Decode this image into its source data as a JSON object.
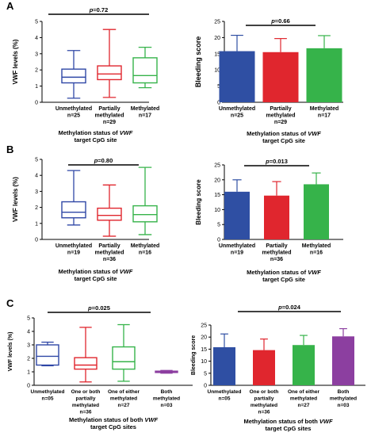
{
  "figure": {
    "panels": [
      {
        "letter": "A"
      },
      {
        "letter": "B"
      },
      {
        "letter": "C"
      }
    ]
  },
  "chart_data": [
    {
      "id": "A-left",
      "type": "box",
      "panel": "A",
      "p_label": "p",
      "p_value": "=0.72",
      "ylabel": "VWF levels (%)",
      "ylim": [
        0,
        5
      ],
      "yticks": [
        0,
        1,
        2,
        3,
        4,
        5
      ],
      "xtitle_lines": [
        [
          "Methylation status of ",
          "VWF"
        ],
        [
          "target CpG site",
          ""
        ]
      ],
      "categories": [
        {
          "lines": [
            "Unmethylated",
            "n=25"
          ],
          "color": "#2f47a6",
          "stats": {
            "min": 0.25,
            "q1": 1.2,
            "median": 1.55,
            "q3": 2.05,
            "max": 3.2
          }
        },
        {
          "lines": [
            "Partially",
            "methylated",
            "n=29"
          ],
          "color": "#e0262e",
          "stats": {
            "min": 0.3,
            "q1": 1.4,
            "median": 1.75,
            "q3": 2.25,
            "max": 4.5
          }
        },
        {
          "lines": [
            "Methylated",
            "n=17"
          ],
          "color": "#36b34a",
          "stats": {
            "min": 0.9,
            "q1": 1.2,
            "median": 1.65,
            "q3": 2.75,
            "max": 3.4
          }
        }
      ]
    },
    {
      "id": "A-right",
      "type": "bar",
      "panel": "A",
      "p_label": "p",
      "p_value": "=0.66",
      "ylabel": "Bleeding score",
      "ylim": [
        0,
        25
      ],
      "yticks": [
        0,
        5,
        10,
        15,
        20,
        25
      ],
      "xtitle_lines": [
        [
          "Methylation status of ",
          "VWF"
        ],
        [
          "target CpG site",
          ""
        ]
      ],
      "categories": [
        {
          "lines": [
            "Unmethylated",
            "n=25"
          ],
          "color": "#2f4fa3",
          "value": 15.8,
          "err": 4.9
        },
        {
          "lines": [
            "Partially",
            "methylated",
            "n=29"
          ],
          "color": "#e0262e",
          "value": 15.5,
          "err": 4.2
        },
        {
          "lines": [
            "Methylated",
            "n=17"
          ],
          "color": "#36b34a",
          "value": 16.7,
          "err": 3.9
        }
      ]
    },
    {
      "id": "B-left",
      "type": "box",
      "panel": "B",
      "p_label": "p",
      "p_value": "=0.80",
      "ylabel": "VWF levels (%)",
      "ylim": [
        0,
        5
      ],
      "yticks": [
        0,
        1,
        2,
        3,
        4,
        5
      ],
      "xtitle_lines": [
        [
          "Methylation status of ",
          "VWF"
        ],
        [
          "target CpG site",
          ""
        ]
      ],
      "categories": [
        {
          "lines": [
            "Unmethylated",
            "n=19"
          ],
          "color": "#2f47a6",
          "stats": {
            "min": 0.9,
            "q1": 1.35,
            "median": 1.7,
            "q3": 2.35,
            "max": 4.3
          }
        },
        {
          "lines": [
            "Partially",
            "methylated",
            "n=36"
          ],
          "color": "#e0262e",
          "stats": {
            "min": 0.2,
            "q1": 1.2,
            "median": 1.5,
            "q3": 1.95,
            "max": 3.4
          }
        },
        {
          "lines": [
            "Methylated",
            "n=16"
          ],
          "color": "#36b34a",
          "stats": {
            "min": 0.3,
            "q1": 1.1,
            "median": 1.55,
            "q3": 2.1,
            "max": 4.5
          }
        }
      ]
    },
    {
      "id": "B-right",
      "type": "bar",
      "panel": "B",
      "p_label": "p",
      "p_value": "=0.013",
      "ylabel": "Bleeding score",
      "ylim": [
        0,
        25
      ],
      "yticks": [
        0,
        5,
        10,
        15,
        20,
        25
      ],
      "xtitle_lines": [
        [
          "Methylation status of ",
          "VWF"
        ],
        [
          "target CpG site",
          ""
        ]
      ],
      "categories": [
        {
          "lines": [
            "Unmethylated",
            "n=19"
          ],
          "color": "#2f4fa3",
          "value": 16.0,
          "err": 4.0
        },
        {
          "lines": [
            "Partially",
            "methylated",
            "n=36"
          ],
          "color": "#e0262e",
          "value": 14.7,
          "err": 4.7
        },
        {
          "lines": [
            "Methylated",
            "n=16"
          ],
          "color": "#36b34a",
          "value": 18.5,
          "err": 3.8
        }
      ]
    },
    {
      "id": "C-left",
      "type": "box",
      "panel": "C",
      "p_label": "p",
      "p_value": "=0.025",
      "ylabel": "VWF levels (%)",
      "ylim": [
        0,
        5
      ],
      "yticks": [
        0,
        1,
        2,
        3,
        4,
        5
      ],
      "xtitle_lines": [
        [
          "Methylation status of both ",
          "VWF"
        ],
        [
          "target CpG sites",
          ""
        ]
      ],
      "categories": [
        {
          "lines": [
            "Unmethylated",
            "n=05"
          ],
          "color": "#2f47a6",
          "stats": {
            "min": 1.45,
            "q1": 1.5,
            "median": 2.15,
            "q3": 3.0,
            "max": 3.2
          }
        },
        {
          "lines": [
            "One or both",
            "partially",
            "methylated",
            "n=36"
          ],
          "color": "#e0262e",
          "stats": {
            "min": 0.25,
            "q1": 1.2,
            "median": 1.5,
            "q3": 2.05,
            "max": 4.3
          }
        },
        {
          "lines": [
            "One of either",
            "methylated",
            "n=27"
          ],
          "color": "#36b34a",
          "stats": {
            "min": 0.3,
            "q1": 1.2,
            "median": 1.75,
            "q3": 2.85,
            "max": 4.5
          }
        },
        {
          "lines": [
            "Both",
            "methylated",
            "n=03"
          ],
          "color": "#8c3fa0",
          "stats": {
            "min": 0.9,
            "q1": 0.95,
            "median": 1.0,
            "q3": 1.05,
            "max": 1.1
          }
        }
      ]
    },
    {
      "id": "C-right",
      "type": "bar",
      "panel": "C",
      "p_label": "p",
      "p_value": "=0.024",
      "ylabel": "Bleeding score",
      "ylim": [
        0,
        25
      ],
      "yticks": [
        0,
        5,
        10,
        15,
        20,
        25
      ],
      "xtitle_lines": [
        [
          "Methylation status of both ",
          "VWF"
        ],
        [
          "target CpG sites",
          ""
        ]
      ],
      "categories": [
        {
          "lines": [
            "Unmethylated",
            "n=05"
          ],
          "color": "#2f4fa3",
          "value": 15.8,
          "err": 5.5
        },
        {
          "lines": [
            "One or both",
            "partially",
            "methylated",
            "n=36"
          ],
          "color": "#e0262e",
          "value": 14.6,
          "err": 4.6
        },
        {
          "lines": [
            "One of either",
            "methylated",
            "n=27"
          ],
          "color": "#36b34a",
          "value": 16.7,
          "err": 4.0
        },
        {
          "lines": [
            "Both",
            "methylated",
            "n=03"
          ],
          "color": "#8c3fa0",
          "value": 20.3,
          "err": 3.2
        }
      ]
    }
  ]
}
